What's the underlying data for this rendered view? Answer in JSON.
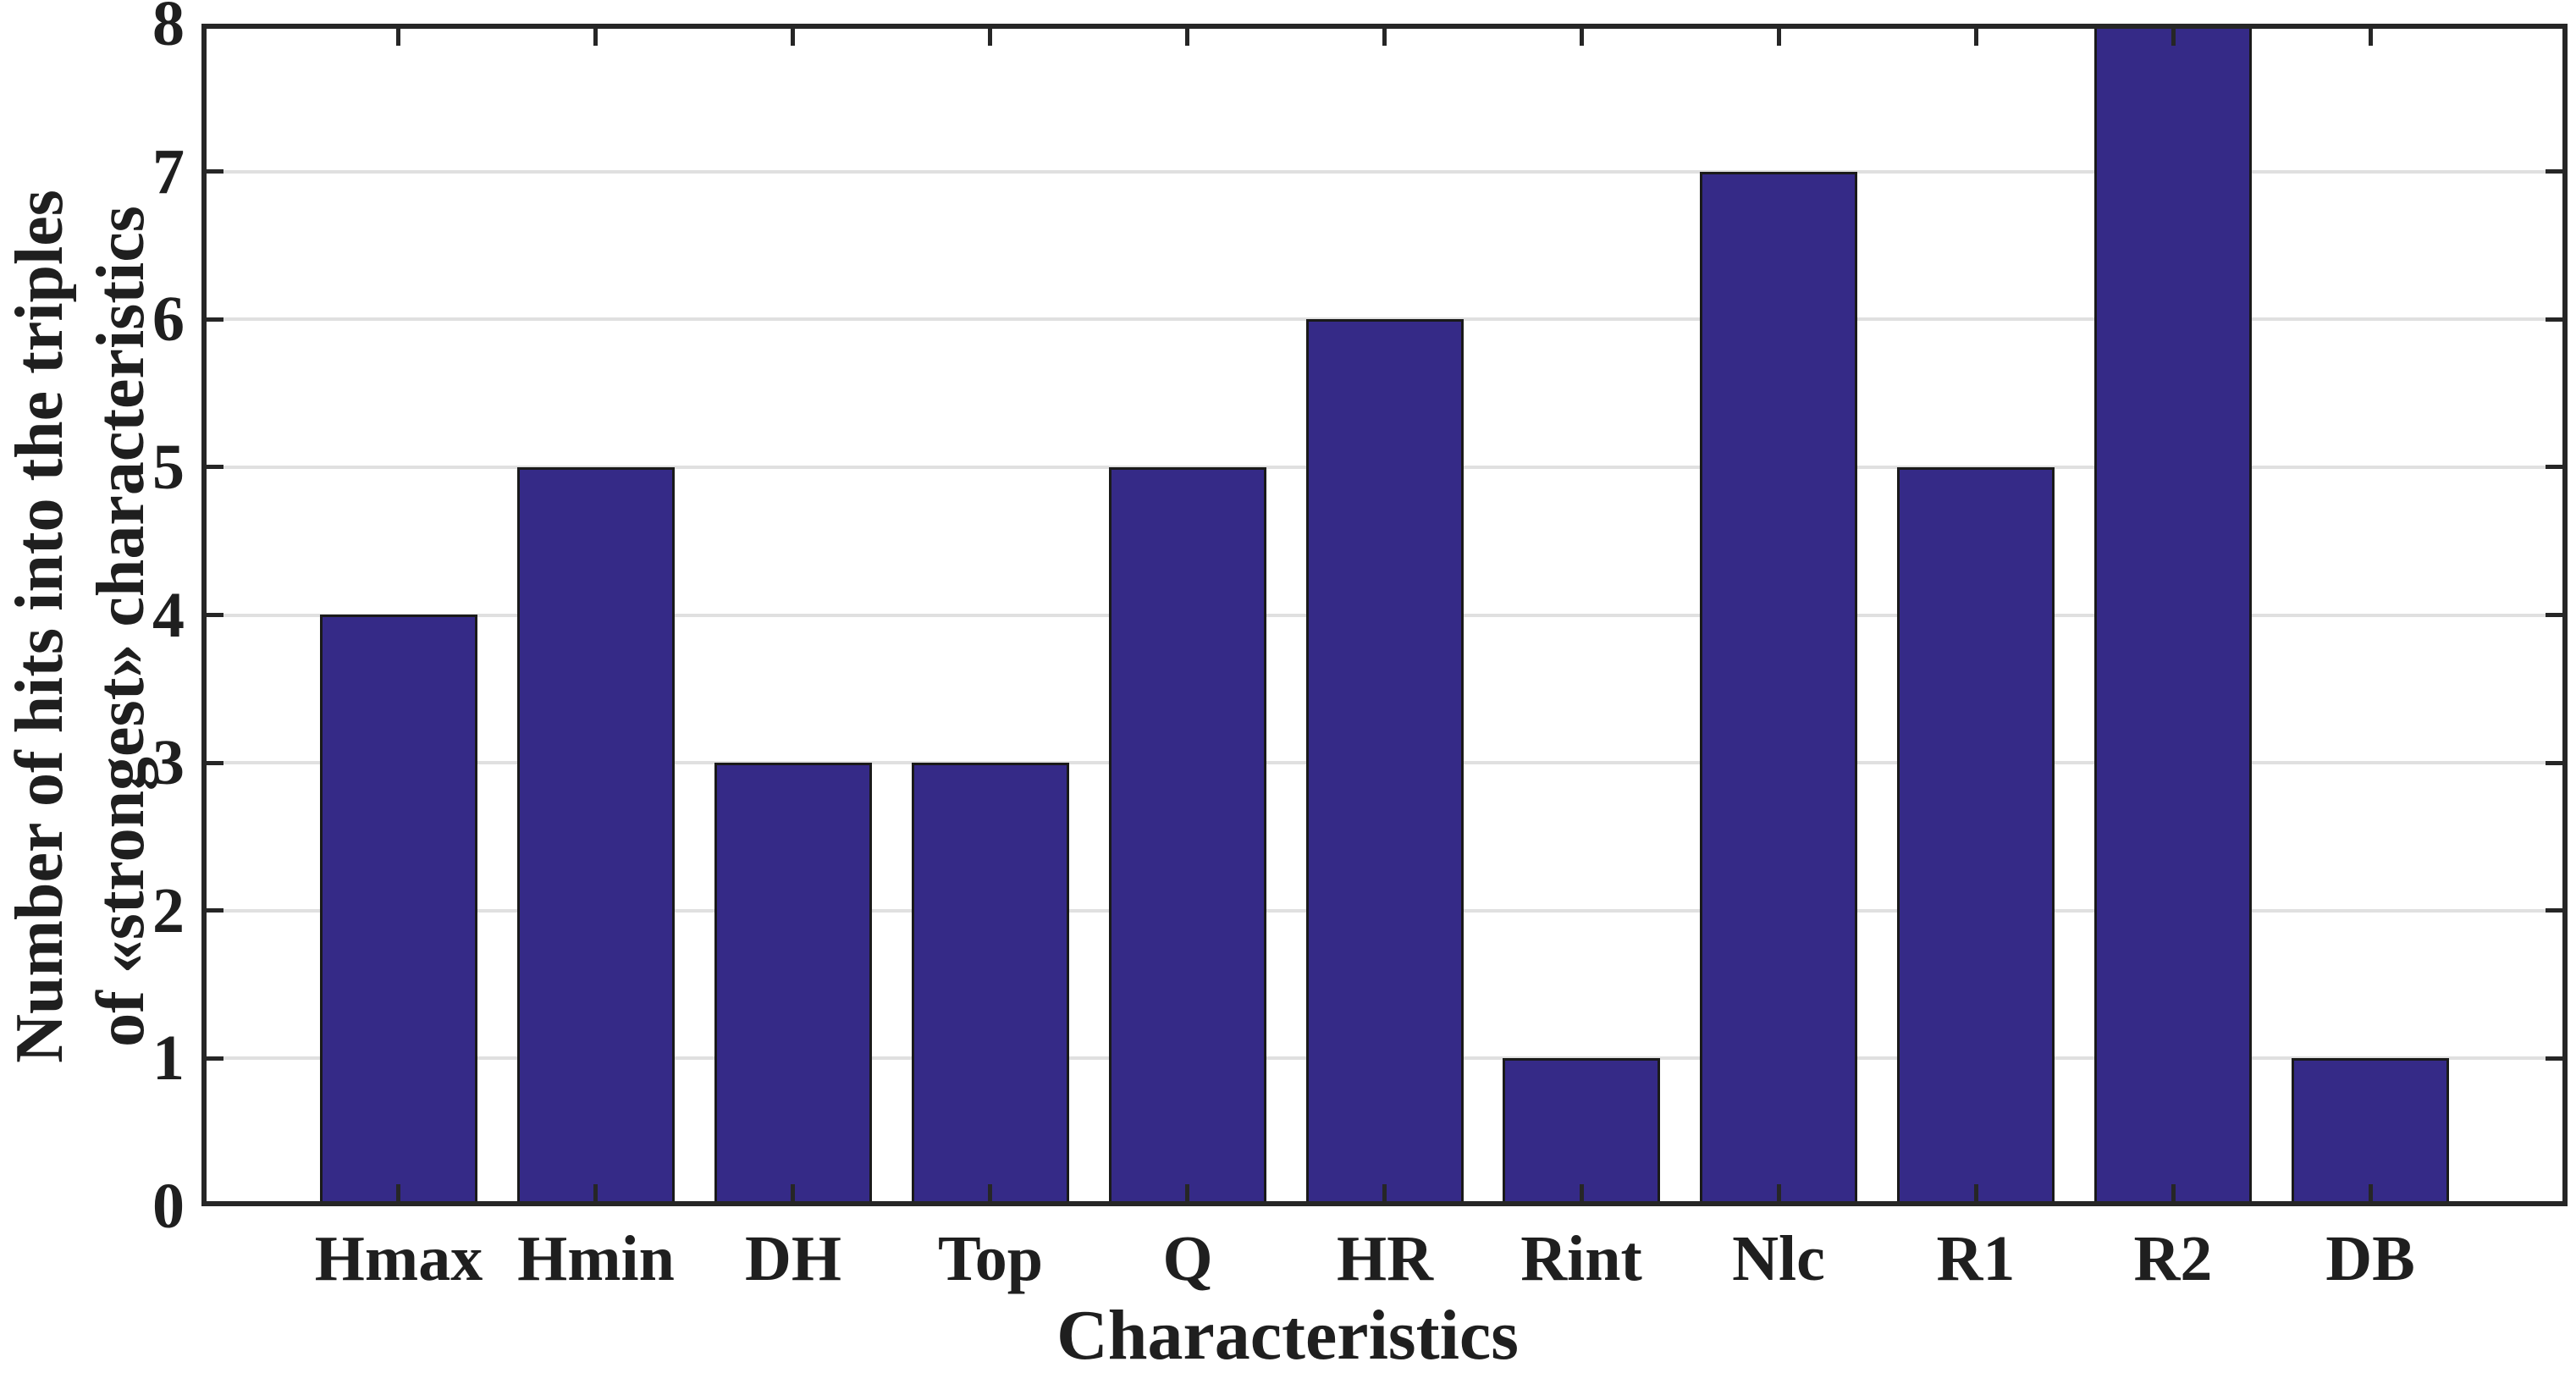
{
  "chart_data": {
    "type": "bar",
    "title": "",
    "categories": [
      "Hmax",
      "Hmin",
      "DH",
      "Top",
      "Q",
      "HR",
      "Rint",
      "Nlc",
      "R1",
      "R2",
      "DB"
    ],
    "values": [
      4,
      5,
      3,
      3,
      5,
      6,
      1,
      7,
      5,
      8,
      1
    ],
    "xlabel": "Characteristics",
    "ylabel": "Number of hits into the triples of «strongest» characteristics",
    "ylabel_lines": [
      "Number of hits into the triples",
      "of «strongest» characteristics"
    ],
    "ylim": [
      0,
      8
    ],
    "y_ticks": [
      "0",
      "1",
      "2",
      "3",
      "4",
      "5",
      "6",
      "7",
      "8"
    ],
    "grid": "horizontal",
    "legend": "none",
    "bar_width_fraction": 0.8,
    "colors": {
      "bar_fill": "#352a87",
      "bar_edge": "#1a1a1a",
      "axis": "#262626",
      "grid": "#e0e0e0",
      "text": "#1f1f1f",
      "background": "#ffffff"
    }
  }
}
